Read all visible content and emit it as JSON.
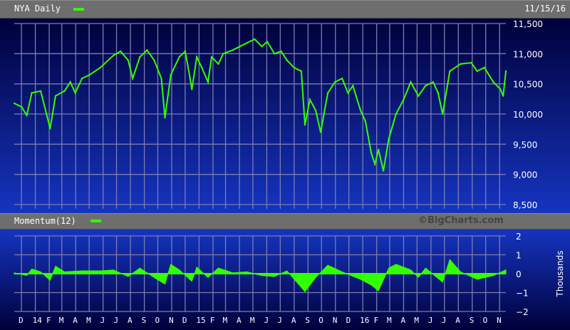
{
  "header": {
    "title": "NYA Daily",
    "date": "11/15/16"
  },
  "momentum_header": {
    "title": "Momentum(12)",
    "copyright": "©BigCharts.com"
  },
  "colors": {
    "series": "#33ff00",
    "grid": "#7c7cb0",
    "background_top": "#00003a",
    "background_bottom": "#1534c0",
    "bar": "#6e6e6e"
  },
  "chart_data": [
    {
      "type": "line",
      "title": "NYA Daily",
      "ylim": [
        8500,
        11500
      ],
      "yticks": [
        "11,500",
        "11,000",
        "10,500",
        "10,000",
        "9,500",
        "9,000",
        "8,500"
      ],
      "ytick_values": [
        11500,
        11000,
        10500,
        10000,
        9500,
        9000,
        8500
      ],
      "xlim": [
        "2013-11-15",
        "2016-11-15"
      ],
      "grid": true,
      "x": [
        "2013-11-15",
        "2013-12-01",
        "2013-12-13",
        "2013-12-24",
        "2014-01-13",
        "2014-02-03",
        "2014-02-15",
        "2014-03-07",
        "2014-03-20",
        "2014-03-31",
        "2014-04-15",
        "2014-05-02",
        "2014-05-26",
        "2014-06-24",
        "2014-07-10",
        "2014-07-27",
        "2014-08-06",
        "2014-08-22",
        "2014-09-07",
        "2014-09-23",
        "2014-10-09",
        "2014-10-17",
        "2014-10-30",
        "2014-11-18",
        "2014-12-01",
        "2014-12-12",
        "2014-12-16",
        "2014-12-27",
        "2015-01-07",
        "2015-01-21",
        "2015-01-29",
        "2015-02-13",
        "2015-02-24",
        "2015-03-17",
        "2015-04-02",
        "2015-04-18",
        "2015-05-05",
        "2015-05-21",
        "2015-06-02",
        "2015-06-18",
        "2015-07-03",
        "2015-07-16",
        "2015-08-01",
        "2015-08-17",
        "2015-08-25",
        "2015-09-05",
        "2015-09-18",
        "2015-09-29",
        "2015-10-15",
        "2015-10-31",
        "2015-11-16",
        "2015-11-29",
        "2015-12-10",
        "2015-12-27",
        "2016-01-07",
        "2016-01-20",
        "2016-01-28",
        "2016-02-05",
        "2016-02-16",
        "2016-02-28",
        "2016-03-15",
        "2016-04-01",
        "2016-04-17",
        "2016-05-04",
        "2016-05-20",
        "2016-06-06",
        "2016-06-17",
        "2016-06-27",
        "2016-07-13",
        "2016-08-06",
        "2016-08-30",
        "2016-09-12",
        "2016-09-28",
        "2016-10-18",
        "2016-11-03",
        "2016-11-09",
        "2016-11-15"
      ],
      "values": [
        10177,
        10120,
        9980,
        10350,
        10380,
        9760,
        10300,
        10380,
        10530,
        10350,
        10590,
        10650,
        10770,
        10970,
        11040,
        10890,
        10590,
        10945,
        11060,
        10890,
        10590,
        9940,
        10650,
        10945,
        11040,
        10590,
        10410,
        10945,
        10770,
        10530,
        10945,
        10830,
        11000,
        11060,
        11120,
        11180,
        11240,
        11120,
        11200,
        11000,
        11040,
        10890,
        10770,
        10710,
        9820,
        10240,
        10060,
        9700,
        10350,
        10530,
        10590,
        10350,
        10470,
        10060,
        9880,
        9350,
        9170,
        9410,
        9060,
        9590,
        10000,
        10240,
        10530,
        10300,
        10470,
        10530,
        10350,
        10000,
        10710,
        10830,
        10850,
        10710,
        10770,
        10530,
        10410,
        10300,
        10710
      ]
    },
    {
      "type": "area",
      "title": "Momentum(12)",
      "ylabel": "Thousands",
      "ylim": [
        -2,
        2
      ],
      "yticks": [
        "2",
        "1",
        "0",
        "−1",
        "−2"
      ],
      "ytick_values": [
        2,
        1,
        0,
        -1,
        -2
      ],
      "grid": true,
      "x": [
        "2013-11-15",
        "2013-12-13",
        "2013-12-24",
        "2014-01-13",
        "2014-02-03",
        "2014-02-15",
        "2014-03-07",
        "2014-04-15",
        "2014-05-26",
        "2014-06-24",
        "2014-07-27",
        "2014-08-22",
        "2014-09-23",
        "2014-10-17",
        "2014-10-30",
        "2014-11-18",
        "2014-12-16",
        "2014-12-27",
        "2015-01-21",
        "2015-02-13",
        "2015-03-17",
        "2015-04-18",
        "2015-05-21",
        "2015-06-18",
        "2015-07-16",
        "2015-08-25",
        "2015-09-18",
        "2015-10-15",
        "2015-11-16",
        "2015-12-27",
        "2016-01-20",
        "2016-02-05",
        "2016-02-28",
        "2016-03-15",
        "2016-04-17",
        "2016-05-04",
        "2016-05-20",
        "2016-06-27",
        "2016-07-13",
        "2016-08-06",
        "2016-09-12",
        "2016-10-18",
        "2016-11-15"
      ],
      "values": [
        0.05,
        -0.1,
        0.25,
        0.1,
        -0.35,
        0.4,
        0.1,
        0.15,
        0.15,
        0.2,
        -0.15,
        0.3,
        -0.2,
        -0.55,
        0.5,
        0.2,
        -0.4,
        0.35,
        -0.2,
        0.3,
        0.05,
        0.1,
        -0.1,
        -0.15,
        0.15,
        -0.95,
        -0.2,
        0.45,
        0.1,
        -0.3,
        -0.6,
        -0.9,
        0.3,
        0.5,
        0.2,
        -0.2,
        0.3,
        -0.45,
        0.75,
        0.1,
        -0.3,
        -0.1,
        0.2
      ]
    }
  ],
  "x_axis": {
    "labels": [
      "D",
      "14",
      "F",
      "M",
      "A",
      "M",
      "J",
      "J",
      "A",
      "S",
      "O",
      "N",
      "D",
      "15",
      "F",
      "M",
      "A",
      "M",
      "J",
      "J",
      "A",
      "S",
      "O",
      "N",
      "D",
      "16",
      "F",
      "M",
      "A",
      "M",
      "J",
      "J",
      "A",
      "S",
      "O",
      "N"
    ]
  }
}
